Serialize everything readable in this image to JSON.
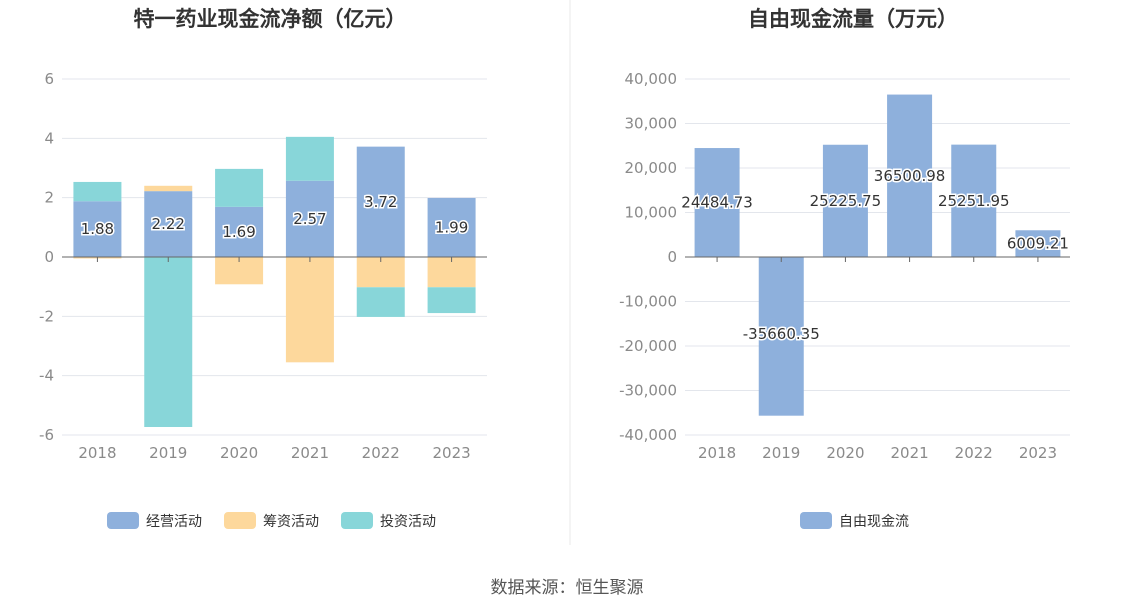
{
  "colors": {
    "operating": "#8eb0dc",
    "financing": "#fdd89c",
    "investing": "#88d6d9",
    "free_cash_flow": "#8eb0dc",
    "grid": "#e3e6ec",
    "axis": "#666666",
    "divider": "#eaeaea"
  },
  "chart_data": [
    {
      "type": "bar",
      "stacked": true,
      "title": "特一药业现金流净额（亿元）",
      "categories": [
        "2018",
        "2019",
        "2020",
        "2021",
        "2022",
        "2023"
      ],
      "ylim": [
        -6,
        6
      ],
      "yticks": [
        "6",
        "4",
        "2",
        "0",
        "-2",
        "-4",
        "-6"
      ],
      "ytick_values": [
        6,
        4,
        2,
        0,
        -2,
        -4,
        -6
      ],
      "series": [
        {
          "name": "经营活动",
          "key": "operating",
          "values": [
            1.88,
            2.22,
            1.69,
            2.57,
            3.72,
            1.99
          ],
          "labels": [
            "1.88",
            "2.22",
            "1.69",
            "2.57",
            "3.72",
            "1.99"
          ]
        },
        {
          "name": "筹资活动",
          "key": "financing",
          "values": [
            -0.05,
            0.18,
            -0.92,
            -3.55,
            -1.02,
            -1.02
          ]
        },
        {
          "name": "投资活动",
          "key": "investing",
          "values": [
            0.65,
            -5.73,
            1.28,
            1.48,
            -1.0,
            -0.87
          ]
        }
      ],
      "legend": [
        "经营活动",
        "筹资活动",
        "投资活动"
      ],
      "legend_position": "bottom"
    },
    {
      "type": "bar",
      "title": "自由现金流量（万元）",
      "categories": [
        "2018",
        "2019",
        "2020",
        "2021",
        "2022",
        "2023"
      ],
      "ylim": [
        -40000,
        40000
      ],
      "yticks": [
        "40,000",
        "30,000",
        "20,000",
        "10,000",
        "0",
        "-10,000",
        "-20,000",
        "-30,000",
        "-40,000"
      ],
      "ytick_values": [
        40000,
        30000,
        20000,
        10000,
        0,
        -10000,
        -20000,
        -30000,
        -40000
      ],
      "series": [
        {
          "name": "自由现金流",
          "key": "free_cash_flow",
          "values": [
            24484.73,
            -35660.35,
            25225.75,
            36500.98,
            25251.95,
            6009.21
          ],
          "labels": [
            "24484.73",
            "-35660.35",
            "25225.75",
            "36500.98",
            "25251.95",
            "6009.21"
          ]
        }
      ],
      "legend": [
        "自由现金流"
      ],
      "legend_position": "bottom"
    }
  ],
  "footer": {
    "source": "数据来源：恒生聚源"
  }
}
